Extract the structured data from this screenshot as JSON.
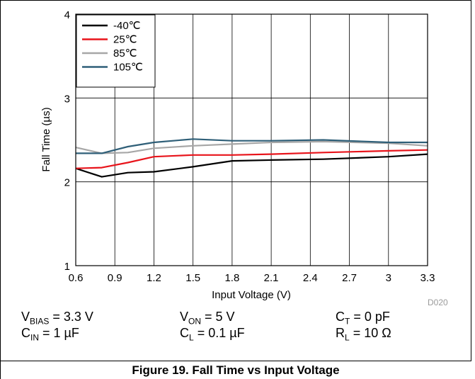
{
  "chart_data": {
    "type": "line",
    "title": "",
    "xlabel": "Input Voltage (V)",
    "ylabel": "Fall Time (µs)",
    "xlim": [
      0.6,
      3.3
    ],
    "ylim": [
      1,
      4
    ],
    "xticks": [
      0.6,
      0.9,
      1.2,
      1.5,
      1.8,
      2.1,
      2.4,
      2.7,
      3,
      3.3
    ],
    "xtick_labels": [
      "0.6",
      "0.9",
      "1.2",
      "1.5",
      "1.8",
      "2.1",
      "2.4",
      "2.7",
      "3",
      "3.3"
    ],
    "yticks": [
      1,
      2,
      3,
      4
    ],
    "ytick_labels": [
      "1",
      "2",
      "3",
      "4"
    ],
    "grid": true,
    "legend_position": "top-left",
    "series": [
      {
        "name": "-40℃",
        "color": "#000000",
        "x": [
          0.6,
          0.8,
          1.0,
          1.2,
          1.5,
          1.8,
          2.1,
          2.5,
          3.0,
          3.3
        ],
        "y": [
          2.16,
          2.06,
          2.11,
          2.12,
          2.18,
          2.25,
          2.26,
          2.27,
          2.3,
          2.33
        ]
      },
      {
        "name": "25℃",
        "color": "#e8141b",
        "x": [
          0.6,
          0.8,
          1.0,
          1.2,
          1.5,
          1.8,
          2.1,
          2.5,
          3.0,
          3.3
        ],
        "y": [
          2.16,
          2.17,
          2.23,
          2.3,
          2.32,
          2.32,
          2.33,
          2.35,
          2.37,
          2.38
        ]
      },
      {
        "name": "85℃",
        "color": "#a7a7a7",
        "x": [
          0.6,
          0.8,
          1.0,
          1.2,
          1.5,
          1.8,
          2.1,
          2.5,
          3.0,
          3.3
        ],
        "y": [
          2.41,
          2.34,
          2.35,
          2.4,
          2.43,
          2.45,
          2.47,
          2.48,
          2.46,
          2.43
        ]
      },
      {
        "name": "105℃",
        "color": "#2f5f78",
        "x": [
          0.6,
          0.8,
          1.0,
          1.2,
          1.5,
          1.8,
          2.1,
          2.5,
          3.0,
          3.3
        ],
        "y": [
          2.34,
          2.34,
          2.42,
          2.47,
          2.51,
          2.49,
          2.49,
          2.5,
          2.47,
          2.47
        ]
      }
    ]
  },
  "doc_code": "D020",
  "conditions": {
    "vbias": {
      "sym": "V",
      "sub": "BIAS",
      "val": " = 3.3 V"
    },
    "von": {
      "sym": "V",
      "sub": "ON",
      "val": " = 5 V"
    },
    "ct": {
      "sym": "C",
      "sub": "T",
      "val": " = 0 pF"
    },
    "cin": {
      "sym": "C",
      "sub": "IN",
      "val": " = 1 µF"
    },
    "cl": {
      "sym": "C",
      "sub": "L",
      "val": " = 0.1 µF"
    },
    "rl": {
      "sym": "R",
      "sub": "L",
      "val": " = 10 Ω"
    }
  },
  "caption": "Figure 19. Fall Time vs Input Voltage"
}
